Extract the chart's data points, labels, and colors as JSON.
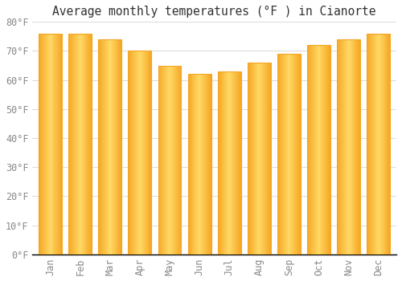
{
  "title": "Average monthly temperatures (°F ) in Cianorte",
  "months": [
    "Jan",
    "Feb",
    "Mar",
    "Apr",
    "May",
    "Jun",
    "Jul",
    "Aug",
    "Sep",
    "Oct",
    "Nov",
    "Dec"
  ],
  "values": [
    76,
    76,
    74,
    70,
    65,
    62,
    63,
    66,
    69,
    72,
    74,
    76
  ],
  "bar_color_center": "#FFD966",
  "bar_color_edge": "#F5A623",
  "ylim": [
    0,
    80
  ],
  "yticks": [
    0,
    10,
    20,
    30,
    40,
    50,
    60,
    70,
    80
  ],
  "ytick_labels": [
    "0°F",
    "10°F",
    "20°F",
    "30°F",
    "40°F",
    "50°F",
    "60°F",
    "70°F",
    "80°F"
  ],
  "background_color": "#FFFFFF",
  "grid_color": "#DDDDDD",
  "title_fontsize": 10.5,
  "tick_fontsize": 8.5,
  "tick_color": "#888888",
  "axis_color": "#000000",
  "bar_width": 0.78
}
